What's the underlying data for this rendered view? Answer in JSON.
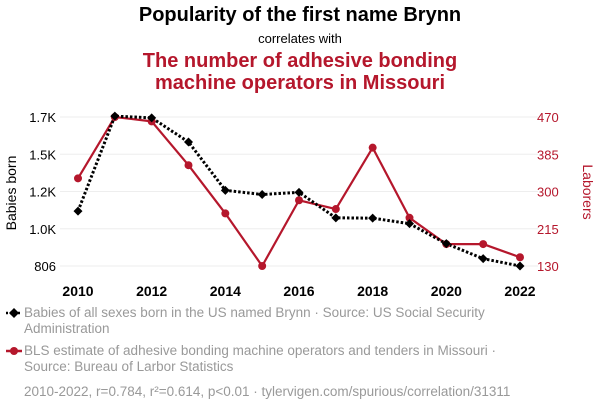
{
  "titles": {
    "title": "Popularity of the first name Brynn",
    "connector": "correlates with",
    "subtitle_line1": "The number of adhesive bonding",
    "subtitle_line2": "machine operators in Missouri"
  },
  "chart_data": {
    "type": "line",
    "x": [
      2010,
      2011,
      2012,
      2013,
      2014,
      2015,
      2016,
      2017,
      2018,
      2019,
      2020,
      2021,
      2022
    ],
    "x_ticks": [
      "2010",
      "2012",
      "2014",
      "2016",
      "2018",
      "2020",
      "2022"
    ],
    "ylabel_left": "Babies born",
    "ylabel_right": "Laborers",
    "left_ticks": [
      "1.7K",
      "1.5K",
      "1.2K",
      "1.0K",
      "806"
    ],
    "right_ticks": [
      "470",
      "385",
      "300",
      "215",
      "130"
    ],
    "left_range": [
      806,
      1700
    ],
    "right_range": [
      130,
      470
    ],
    "grid": true,
    "series": [
      {
        "name": "Babies of all sexes born in the US named Brynn",
        "axis": "left",
        "color": "#000000",
        "style": "dotted",
        "marker": "diamond",
        "values": [
          1135,
          1705,
          1695,
          1550,
          1260,
          1235,
          1248,
          1095,
          1093,
          1060,
          940,
          850,
          806
        ]
      },
      {
        "name": "BLS estimate of adhesive bonding machine operators and tenders in Missouri",
        "axis": "right",
        "color": "#b5172c",
        "style": "solid",
        "marker": "circle",
        "values": [
          330,
          470,
          460,
          360,
          250,
          130,
          280,
          260,
          400,
          240,
          180,
          180,
          150
        ]
      }
    ]
  },
  "legend": [
    {
      "text_line1": "Babies of all sexes born in the US named Brynn · Source: US Social Security",
      "text_line2": "Administration"
    },
    {
      "text_line1": "BLS estimate of adhesive bonding machine operators and tenders in Missouri ·",
      "text_line2": "Source: Bureau of Larbor Statistics"
    }
  ],
  "footer": "2010-2022, r=0.784, r²=0.614, p<0.01 · tylervigen.com/spurious/correlation/31311"
}
